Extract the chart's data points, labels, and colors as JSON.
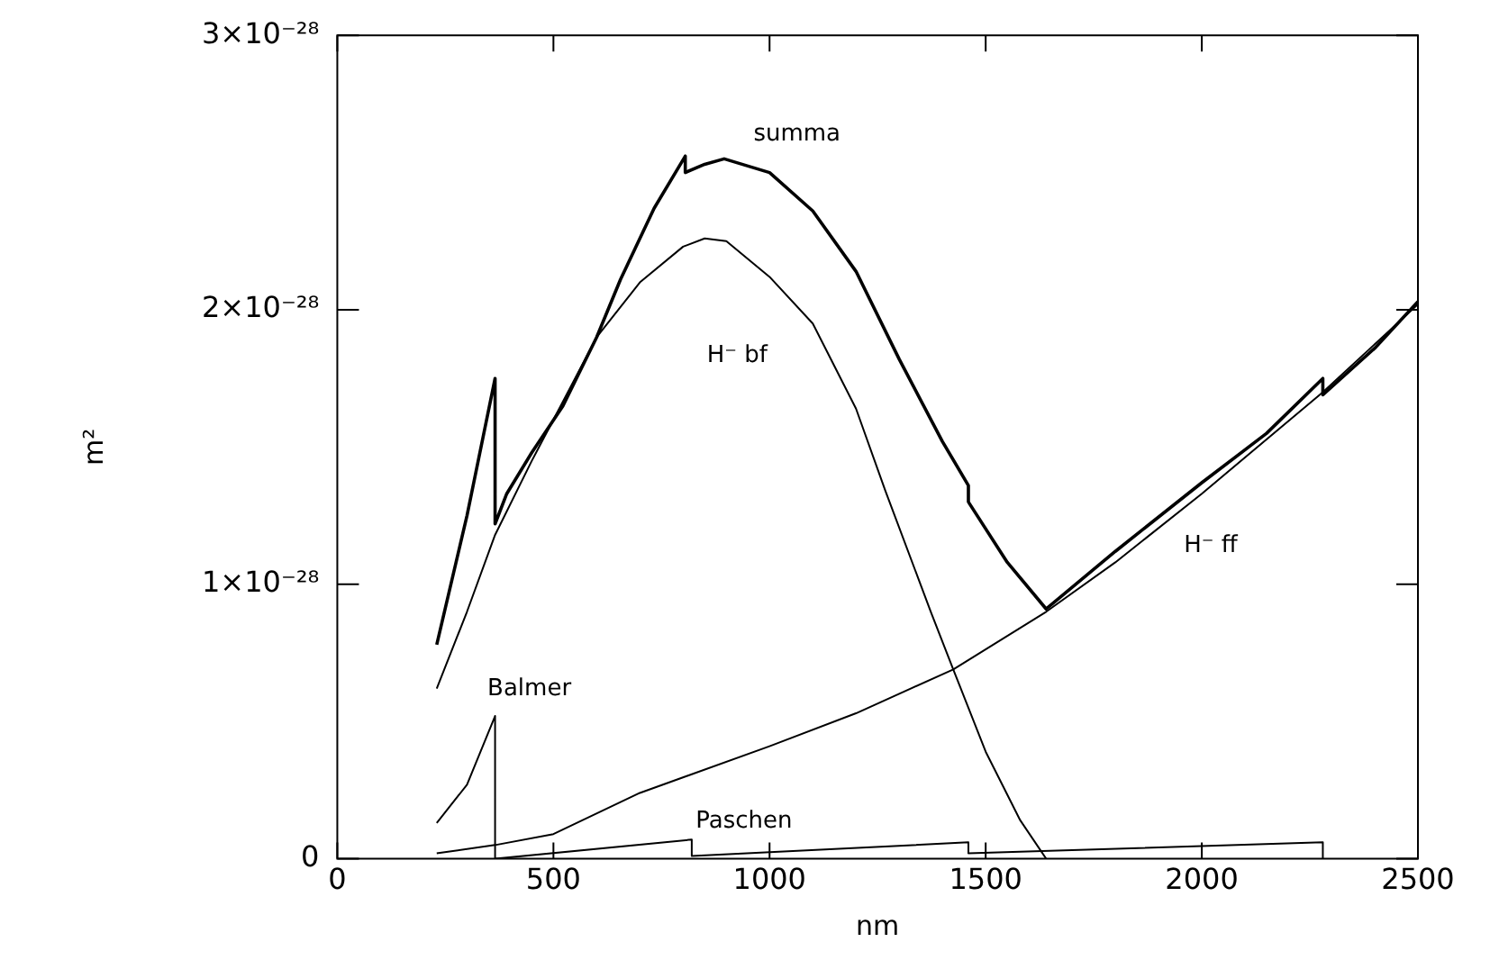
{
  "chart_data": {
    "type": "line",
    "xlabel": "nm",
    "ylabel": "m²",
    "xlim": [
      0,
      2500
    ],
    "xticks": [
      0,
      500,
      1000,
      1500,
      2000,
      2500
    ],
    "ylim": [
      0,
      3e-28
    ],
    "yticks": [
      {
        "value": 0,
        "label": "0"
      },
      {
        "value": 1e-28,
        "label": "1×10⁻²⁸"
      },
      {
        "value": 2e-28,
        "label": "2×10⁻²⁸"
      },
      {
        "value": 3e-28,
        "label": "3×10⁻²⁸"
      }
    ],
    "marker": "none",
    "line_style": "solid",
    "legend": false,
    "series": [
      {
        "name": "summa",
        "color": "#000000",
        "x": [
          230,
          300,
          365,
          365,
          392,
          450,
          522,
          600,
          655,
          733,
          805,
          805,
          850,
          895,
          1000,
          1100,
          1200,
          1300,
          1400,
          1460,
          1460,
          1550,
          1640,
          1800,
          2000,
          2150,
          2280,
          2280,
          2400,
          2500
        ],
        "values": [
          7.8e-29,
          1.25e-28,
          1.75e-28,
          1.22e-28,
          1.33e-28,
          1.48e-28,
          1.65e-28,
          1.9e-28,
          2.11e-28,
          2.37e-28,
          2.56e-28,
          2.5e-28,
          2.53e-28,
          2.55e-28,
          2.5e-28,
          2.36e-28,
          2.14e-28,
          1.82e-28,
          1.52e-28,
          1.36e-28,
          1.3e-28,
          1.08e-28,
          9.1e-29,
          1.12e-28,
          1.37e-28,
          1.55e-28,
          1.75e-28,
          1.69e-28,
          1.86e-28,
          2.03e-28
        ]
      },
      {
        "name": "H⁻ bf",
        "color": "#000000",
        "x": [
          230,
          300,
          365,
          450,
          500,
          600,
          700,
          800,
          850,
          900,
          1000,
          1100,
          1200,
          1268,
          1373,
          1425,
          1500,
          1580,
          1640
        ],
        "values": [
          6.2e-29,
          9e-29,
          1.18e-28,
          1.45e-28,
          1.6e-28,
          1.9e-28,
          2.1e-28,
          2.23e-28,
          2.26e-28,
          2.25e-28,
          2.12e-28,
          1.95e-28,
          1.64e-28,
          1.34e-28,
          9e-29,
          6.9e-29,
          3.9e-29,
          1.4e-29,
          0
        ]
      },
      {
        "name": "H⁻ ff",
        "color": "#000000",
        "x": [
          230,
          365,
          500,
          700,
          1000,
          1200,
          1425,
          1640,
          1800,
          2000,
          2280,
          2500
        ],
        "values": [
          2e-30,
          5e-30,
          9e-30,
          2.4e-29,
          4.1e-29,
          5.3e-29,
          6.9e-29,
          9e-29,
          1.08e-28,
          1.33e-28,
          1.7e-28,
          2.02e-28
        ]
      },
      {
        "name": "Balmer",
        "color": "#000000",
        "x": [
          230,
          300,
          365,
          365
        ],
        "values": [
          1.3e-29,
          2.7e-29,
          5.2e-29,
          0
        ]
      },
      {
        "name": "Paschen",
        "color": "#000000",
        "x": [
          365,
          820,
          820,
          1460,
          1460,
          2280,
          2280
        ],
        "values": [
          0,
          7e-30,
          1e-30,
          6e-30,
          2e-30,
          6e-30,
          0
        ]
      }
    ]
  }
}
